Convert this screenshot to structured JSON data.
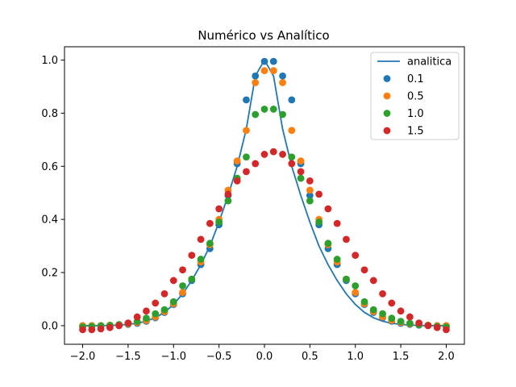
{
  "chart_data": {
    "type": "scatter",
    "title": "Numérico vs Analítico",
    "xlabel": "",
    "ylabel": "",
    "xlim": [
      -2.2,
      2.2
    ],
    "ylim": [
      -0.07,
      1.05
    ],
    "x_ticks": [
      -2.0,
      -1.5,
      -1.0,
      -0.5,
      0.0,
      0.5,
      1.0,
      1.5,
      2.0
    ],
    "x_tick_labels": [
      "−2.0",
      "−1.5",
      "−1.0",
      "−0.5",
      "0.0",
      "0.5",
      "1.0",
      "1.5",
      "2.0"
    ],
    "y_ticks": [
      0.0,
      0.2,
      0.4,
      0.6,
      0.8,
      1.0
    ],
    "y_tick_labels": [
      "0.0",
      "0.2",
      "0.4",
      "0.6",
      "0.8",
      "1.0"
    ],
    "grid": false,
    "legend_position": "top-right",
    "x": [
      -2.0,
      -1.9,
      -1.8,
      -1.7,
      -1.6,
      -1.5,
      -1.4,
      -1.3,
      -1.2,
      -1.1,
      -1.0,
      -0.9,
      -0.8,
      -0.7,
      -0.6,
      -0.5,
      -0.4,
      -0.3,
      -0.2,
      -0.1,
      0.0,
      0.1,
      0.2,
      0.3,
      0.4,
      0.5,
      0.6,
      0.7,
      0.8,
      0.9,
      1.0,
      1.1,
      1.2,
      1.3,
      1.4,
      1.5,
      1.6,
      1.7,
      1.8,
      1.9,
      2.0
    ],
    "line_series": {
      "name": "analitica",
      "color": "#1f77b4",
      "x": [
        -2.0,
        -1.9,
        -1.8,
        -1.7,
        -1.6,
        -1.5,
        -1.4,
        -1.3,
        -1.2,
        -1.1,
        -1.0,
        -0.9,
        -0.8,
        -0.7,
        -0.6,
        -0.5,
        -0.4,
        -0.3,
        -0.2,
        -0.1,
        0.0,
        0.1,
        0.2,
        0.3,
        0.4,
        0.5,
        0.6,
        0.7,
        0.8,
        0.9,
        1.0,
        1.1,
        1.2,
        1.3,
        1.4,
        1.5,
        1.6,
        1.7,
        1.8,
        1.9,
        2.0
      ],
      "values": [
        0.0,
        0.0,
        0.0,
        0.001,
        0.002,
        0.005,
        0.009,
        0.017,
        0.03,
        0.05,
        0.08,
        0.12,
        0.17,
        0.23,
        0.3,
        0.39,
        0.49,
        0.6,
        0.74,
        0.94,
        1.0,
        0.94,
        0.74,
        0.6,
        0.49,
        0.39,
        0.3,
        0.23,
        0.17,
        0.12,
        0.08,
        0.05,
        0.03,
        0.017,
        0.009,
        0.005,
        0.002,
        0.001,
        0.0,
        0.0,
        0.0
      ]
    },
    "series": [
      {
        "name": "0.1",
        "color": "#1f77b4",
        "values": [
          0.0,
          0.0,
          0.0,
          0.001,
          0.002,
          0.005,
          0.009,
          0.017,
          0.03,
          0.05,
          0.08,
          0.12,
          0.17,
          0.23,
          0.29,
          0.38,
          0.49,
          0.61,
          0.85,
          0.94,
          0.995,
          0.995,
          0.94,
          0.85,
          0.61,
          0.49,
          0.38,
          0.29,
          0.23,
          0.17,
          0.12,
          0.08,
          0.05,
          0.03,
          0.017,
          0.009,
          0.005,
          0.002,
          0.001,
          0.0,
          0.0
        ]
      },
      {
        "name": "0.5",
        "color": "#ff7f0e",
        "values": [
          0.0,
          0.0,
          0.0,
          0.002,
          0.004,
          0.007,
          0.012,
          0.02,
          0.033,
          0.053,
          0.083,
          0.125,
          0.175,
          0.24,
          0.305,
          0.4,
          0.51,
          0.62,
          0.735,
          0.915,
          0.96,
          0.96,
          0.915,
          0.735,
          0.62,
          0.51,
          0.4,
          0.305,
          0.24,
          0.175,
          0.125,
          0.083,
          0.053,
          0.033,
          0.02,
          0.012,
          0.007,
          0.004,
          0.002,
          0.0,
          0.0
        ]
      },
      {
        "name": "1.0",
        "color": "#2ca02c",
        "values": [
          -0.005,
          -0.003,
          -0.001,
          0.001,
          0.004,
          0.009,
          0.016,
          0.028,
          0.045,
          0.06,
          0.09,
          0.15,
          0.175,
          0.25,
          0.31,
          0.39,
          0.47,
          0.555,
          0.635,
          0.795,
          0.815,
          0.815,
          0.795,
          0.635,
          0.555,
          0.47,
          0.39,
          0.31,
          0.25,
          0.175,
          0.15,
          0.09,
          0.06,
          0.045,
          0.028,
          0.016,
          0.009,
          0.004,
          0.001,
          -0.003,
          -0.005
        ]
      },
      {
        "name": "1.5",
        "color": "#d62728",
        "values": [
          -0.015,
          -0.015,
          -0.012,
          -0.007,
          0.0,
          0.01,
          0.033,
          0.055,
          0.085,
          0.12,
          0.17,
          0.21,
          0.265,
          0.325,
          0.385,
          0.44,
          0.495,
          0.545,
          0.58,
          0.61,
          0.645,
          0.655,
          0.645,
          0.61,
          0.58,
          0.545,
          0.495,
          0.44,
          0.385,
          0.325,
          0.265,
          0.21,
          0.17,
          0.12,
          0.085,
          0.055,
          0.033,
          0.01,
          0.0,
          -0.007,
          -0.015
        ]
      }
    ]
  }
}
